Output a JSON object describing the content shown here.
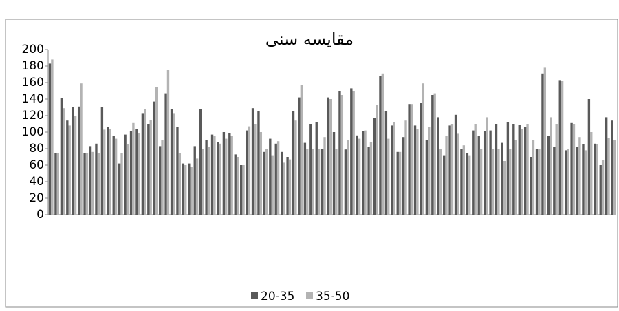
{
  "chart_data": {
    "type": "bar",
    "title": "مقایسه سنی",
    "categories": [
      null,
      null,
      null,
      null,
      null,
      null,
      null,
      null,
      null,
      null,
      null,
      null,
      null,
      null,
      null,
      null,
      null,
      null,
      null,
      null,
      null,
      null,
      null,
      null,
      null,
      null,
      null,
      null,
      null,
      null,
      null,
      null,
      null,
      null,
      null,
      null,
      null,
      null,
      null,
      null,
      null,
      null,
      null,
      null,
      null,
      null,
      null,
      null,
      null,
      null,
      null,
      null,
      null,
      null,
      null,
      null,
      null,
      null,
      null,
      null,
      null,
      null,
      null,
      null,
      null,
      null,
      null,
      null,
      null,
      null,
      null,
      null,
      null,
      null,
      null,
      null,
      null,
      null,
      null,
      null,
      null,
      null,
      null,
      null,
      null,
      null,
      null,
      null,
      null,
      null,
      null,
      null,
      null,
      null,
      null,
      null,
      null,
      null
    ],
    "series": [
      {
        "name": "20-35",
        "color": "#595959",
        "values": [
          183,
          75,
          141,
          114,
          130,
          131,
          75,
          83,
          86,
          130,
          106,
          95,
          62,
          97,
          101,
          104,
          123,
          110,
          137,
          83,
          147,
          128,
          106,
          62,
          62,
          83,
          128,
          90,
          97,
          88,
          100,
          99,
          73,
          60,
          102,
          129,
          125,
          76,
          92,
          86,
          76,
          70,
          125,
          142,
          87,
          110,
          112,
          80,
          142,
          100,
          150,
          79,
          153,
          96,
          101,
          82,
          117,
          168,
          125,
          108,
          76,
          94,
          134,
          108,
          135,
          90,
          145,
          118,
          72,
          108,
          121,
          80,
          75,
          102,
          95,
          101,
          102,
          110,
          87,
          112,
          110,
          109,
          106,
          70,
          80,
          171,
          95,
          82,
          163,
          78,
          111,
          82,
          85,
          140,
          86,
          60,
          118,
          114
        ]
      },
      {
        "name": "35-50",
        "color": "#b3b3b3",
        "values": [
          188,
          75,
          129,
          108,
          120,
          159,
          75,
          76,
          75,
          103,
          104,
          92,
          75,
          85,
          111,
          99,
          128,
          115,
          155,
          90,
          175,
          123,
          75,
          60,
          58,
          68,
          80,
          82,
          95,
          86,
          92,
          95,
          70,
          60,
          107,
          110,
          100,
          80,
          72,
          89,
          63,
          67,
          114,
          157,
          80,
          80,
          80,
          94,
          140,
          80,
          145,
          90,
          150,
          92,
          102,
          88,
          133,
          171,
          92,
          112,
          76,
          114,
          134,
          104,
          159,
          106,
          147,
          80,
          95,
          110,
          98,
          84,
          72,
          110,
          80,
          118,
          80,
          80,
          65,
          80,
          90,
          104,
          110,
          90,
          80,
          178,
          118,
          110,
          162,
          80,
          110,
          94,
          78,
          100,
          85,
          66,
          93,
          90
        ]
      }
    ],
    "ylim": [
      0,
      200
    ],
    "yticks": [
      0,
      20,
      40,
      60,
      80,
      100,
      120,
      140,
      160,
      180,
      200
    ],
    "grid": false
  }
}
